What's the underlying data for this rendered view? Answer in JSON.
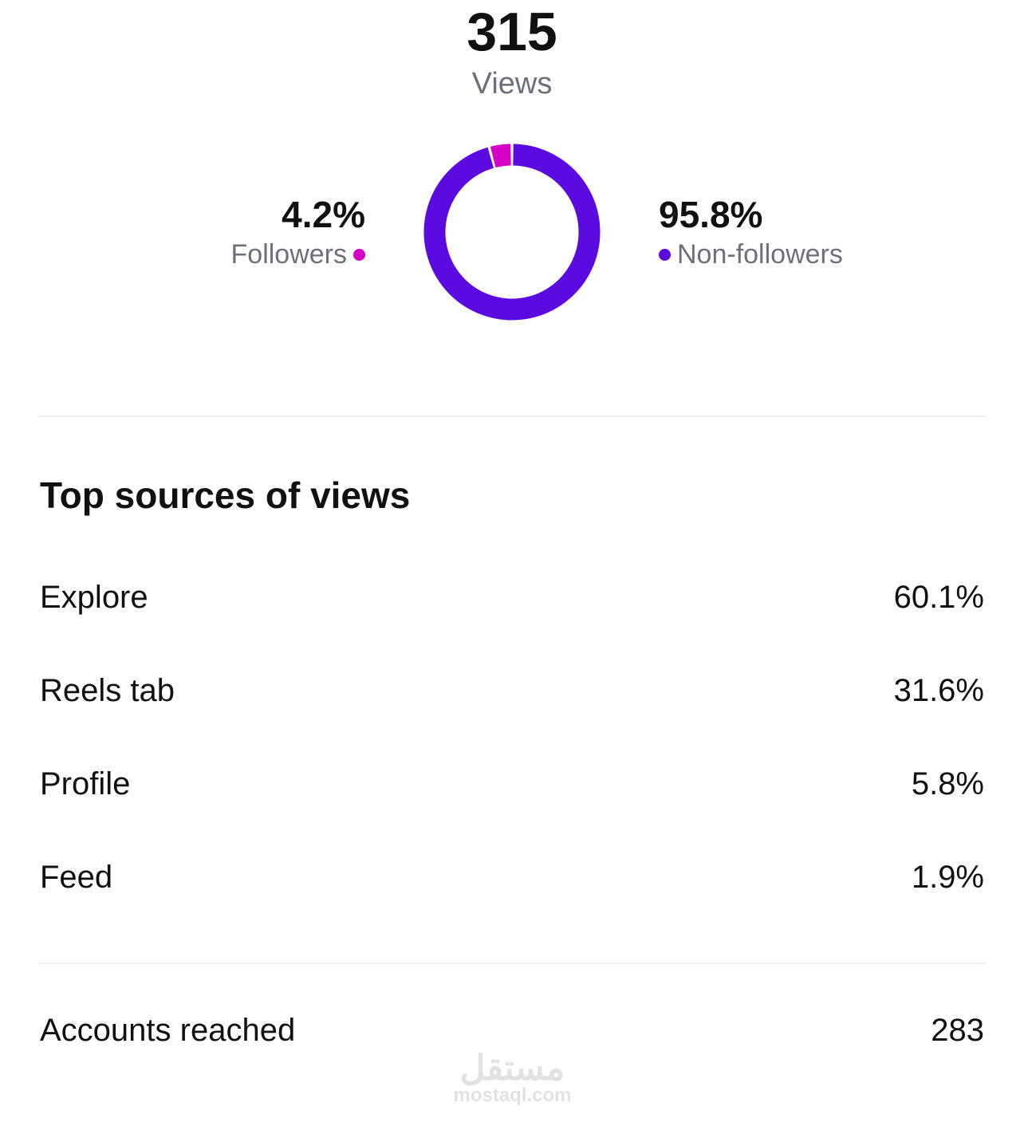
{
  "summary": {
    "total": "315",
    "total_label": "Views"
  },
  "chart_data": {
    "type": "pie",
    "variant": "donut",
    "categories": [
      "Followers",
      "Non-followers"
    ],
    "values": [
      4.2,
      95.8
    ],
    "labels": [
      "4.2%",
      "95.8%"
    ],
    "colors": [
      "#d600c6",
      "#5b0ae0"
    ]
  },
  "sources": {
    "title": "Top sources of views",
    "items": [
      {
        "label": "Explore",
        "value": "60.1%"
      },
      {
        "label": "Reels tab",
        "value": "31.6%"
      },
      {
        "label": "Profile",
        "value": "5.8%"
      },
      {
        "label": "Feed",
        "value": "1.9%"
      }
    ]
  },
  "accounts": {
    "label": "Accounts reached",
    "value": "283"
  },
  "watermark": {
    "arabic": "مستقل",
    "latin": "mostaql.com"
  }
}
